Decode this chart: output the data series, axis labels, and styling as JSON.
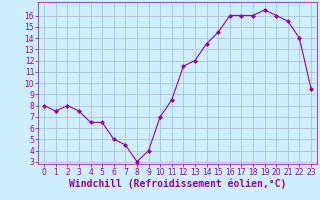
{
  "x": [
    0,
    1,
    2,
    3,
    4,
    5,
    6,
    7,
    8,
    9,
    10,
    11,
    12,
    13,
    14,
    15,
    16,
    17,
    18,
    19,
    20,
    21,
    22,
    23
  ],
  "y": [
    8,
    7.5,
    8,
    7.5,
    6.5,
    6.5,
    5,
    4.5,
    3,
    4,
    7,
    8.5,
    11.5,
    12,
    13.5,
    14.5,
    16,
    16,
    16,
    16.5,
    16,
    15.5,
    14,
    9.5
  ],
  "xlabel": "Windchill (Refroidissement éolien,°C)",
  "line_color": "#990099",
  "marker": "D",
  "marker_size": 2.0,
  "bg_color": "#cceeff",
  "grid_color": "#aabbcc",
  "ylim": [
    2.8,
    17.2
  ],
  "xlim": [
    -0.5,
    23.5
  ],
  "yticks": [
    3,
    4,
    5,
    6,
    7,
    8,
    9,
    10,
    11,
    12,
    13,
    14,
    15,
    16
  ],
  "xticks": [
    0,
    1,
    2,
    3,
    4,
    5,
    6,
    7,
    8,
    9,
    10,
    11,
    12,
    13,
    14,
    15,
    16,
    17,
    18,
    19,
    20,
    21,
    22,
    23
  ],
  "tick_fontsize": 5.5,
  "xlabel_fontsize": 7.0
}
